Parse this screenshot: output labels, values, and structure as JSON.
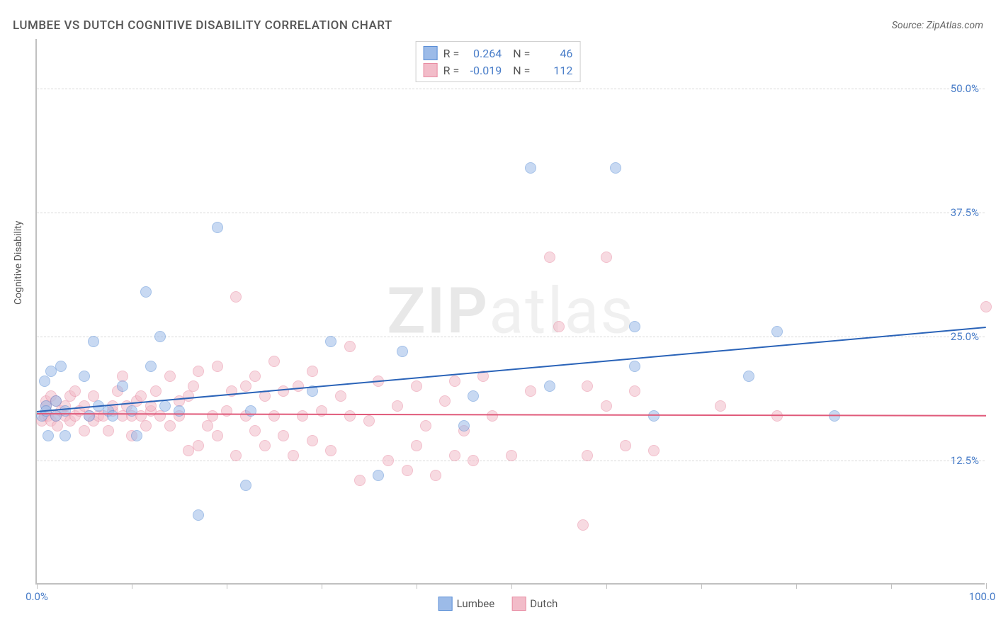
{
  "title": "LUMBEE VS DUTCH COGNITIVE DISABILITY CORRELATION CHART",
  "source_prefix": "Source: ",
  "source_name": "ZipAtlas.com",
  "watermark_bold": "ZIP",
  "watermark_light": "atlas",
  "ylabel": "Cognitive Disability",
  "chart": {
    "type": "scatter",
    "xlim": [
      0,
      100
    ],
    "ylim": [
      0,
      55
    ],
    "background_color": "#ffffff",
    "grid_color": "#d8d8d8",
    "axis_color": "#c0c0c0",
    "tick_label_color": "#4a7ec9",
    "y_gridlines": [
      12.5,
      25.0,
      37.5,
      50.0
    ],
    "y_tick_labels": [
      "12.5%",
      "25.0%",
      "37.5%",
      "50.0%"
    ],
    "x_ticks": [
      0,
      10,
      20,
      30,
      40,
      50,
      60,
      70,
      80,
      90,
      100
    ],
    "x_tick_labels": {
      "0": "0.0%",
      "100": "100.0%"
    },
    "marker_radius": 8,
    "marker_opacity": 0.55,
    "series": [
      {
        "name": "Lumbee",
        "fill_color": "#9cbbe8",
        "stroke_color": "#5b8fd6",
        "line_color": "#2a63b8",
        "R": "0.264",
        "N": "46",
        "trend": {
          "x1": 0,
          "y1": 17.5,
          "x2": 100,
          "y2": 26.0
        },
        "points": [
          [
            0.5,
            17
          ],
          [
            0.8,
            20.5
          ],
          [
            1,
            18
          ],
          [
            1,
            17.5
          ],
          [
            1.2,
            15
          ],
          [
            1.5,
            21.5
          ],
          [
            2,
            18.5
          ],
          [
            2,
            17
          ],
          [
            2.5,
            22
          ],
          [
            3,
            17.5
          ],
          [
            3,
            15
          ],
          [
            5,
            21
          ],
          [
            5.5,
            17
          ],
          [
            6,
            24.5
          ],
          [
            6.5,
            18
          ],
          [
            7.5,
            17.5
          ],
          [
            8,
            17
          ],
          [
            9,
            20
          ],
          [
            10,
            17.5
          ],
          [
            10.5,
            15
          ],
          [
            11.5,
            29.5
          ],
          [
            12,
            22
          ],
          [
            13,
            25
          ],
          [
            13.5,
            18
          ],
          [
            15,
            17.5
          ],
          [
            17,
            7
          ],
          [
            19,
            36
          ],
          [
            22,
            10
          ],
          [
            22.5,
            17.5
          ],
          [
            29,
            19.5
          ],
          [
            31,
            24.5
          ],
          [
            36,
            11
          ],
          [
            38.5,
            23.5
          ],
          [
            45,
            16
          ],
          [
            46,
            19
          ],
          [
            52,
            42
          ],
          [
            54,
            20
          ],
          [
            61,
            42
          ],
          [
            63,
            26
          ],
          [
            63,
            22
          ],
          [
            65,
            17
          ],
          [
            75,
            21
          ],
          [
            78,
            25.5
          ],
          [
            84,
            17
          ]
        ]
      },
      {
        "name": "Dutch",
        "fill_color": "#f2bcc9",
        "stroke_color": "#e88ca3",
        "line_color": "#e05a7a",
        "R": "-0.019",
        "N": "112",
        "trend": {
          "x1": 0,
          "y1": 17.3,
          "x2": 100,
          "y2": 17.1
        },
        "points": [
          [
            0.5,
            16.5
          ],
          [
            0.8,
            17
          ],
          [
            1,
            18
          ],
          [
            1,
            18.5
          ],
          [
            1.2,
            17
          ],
          [
            1.5,
            16.5
          ],
          [
            1.5,
            19
          ],
          [
            2,
            17
          ],
          [
            2,
            18.5
          ],
          [
            2.2,
            16
          ],
          [
            2.5,
            17.5
          ],
          [
            3,
            18
          ],
          [
            3,
            17
          ],
          [
            3.5,
            16.5
          ],
          [
            3.5,
            19
          ],
          [
            4,
            17
          ],
          [
            4,
            19.5
          ],
          [
            4.5,
            17.5
          ],
          [
            5,
            18
          ],
          [
            5,
            15.5
          ],
          [
            5.5,
            17
          ],
          [
            6,
            19
          ],
          [
            6,
            16.5
          ],
          [
            6.5,
            17
          ],
          [
            7,
            17
          ],
          [
            7.5,
            15.5
          ],
          [
            8,
            17.5
          ],
          [
            8,
            18
          ],
          [
            8.5,
            19.5
          ],
          [
            9,
            17
          ],
          [
            9,
            21
          ],
          [
            9.5,
            18
          ],
          [
            10,
            15
          ],
          [
            10,
            17
          ],
          [
            10.5,
            18.5
          ],
          [
            11,
            17
          ],
          [
            11,
            19
          ],
          [
            11.5,
            16
          ],
          [
            12,
            17.5
          ],
          [
            12,
            18
          ],
          [
            12.5,
            19.5
          ],
          [
            13,
            17
          ],
          [
            14,
            16
          ],
          [
            14,
            21
          ],
          [
            15,
            17
          ],
          [
            15,
            18.5
          ],
          [
            16,
            13.5
          ],
          [
            16,
            19
          ],
          [
            16.5,
            20
          ],
          [
            17,
            14
          ],
          [
            17,
            21.5
          ],
          [
            18,
            16
          ],
          [
            18.5,
            17
          ],
          [
            19,
            15
          ],
          [
            19,
            22
          ],
          [
            20,
            17.5
          ],
          [
            20.5,
            19.5
          ],
          [
            21,
            13
          ],
          [
            21,
            29
          ],
          [
            22,
            20
          ],
          [
            22,
            17
          ],
          [
            23,
            15.5
          ],
          [
            23,
            21
          ],
          [
            24,
            14
          ],
          [
            24,
            19
          ],
          [
            25,
            17
          ],
          [
            25,
            22.5
          ],
          [
            26,
            15
          ],
          [
            26,
            19.5
          ],
          [
            27,
            13
          ],
          [
            27.5,
            20
          ],
          [
            28,
            17
          ],
          [
            29,
            14.5
          ],
          [
            29,
            21.5
          ],
          [
            30,
            17.5
          ],
          [
            31,
            13.5
          ],
          [
            32,
            19
          ],
          [
            33,
            17
          ],
          [
            33,
            24
          ],
          [
            34,
            10.5
          ],
          [
            35,
            16.5
          ],
          [
            36,
            20.5
          ],
          [
            37,
            12.5
          ],
          [
            38,
            18
          ],
          [
            39,
            11.5
          ],
          [
            40,
            14
          ],
          [
            40,
            20
          ],
          [
            41,
            16
          ],
          [
            42,
            11
          ],
          [
            43,
            18.5
          ],
          [
            44,
            13
          ],
          [
            44,
            20.5
          ],
          [
            45,
            15.5
          ],
          [
            46,
            12.5
          ],
          [
            47,
            21
          ],
          [
            48,
            17
          ],
          [
            50,
            13
          ],
          [
            52,
            19.5
          ],
          [
            54,
            33
          ],
          [
            55,
            26
          ],
          [
            57.5,
            6
          ],
          [
            58,
            13
          ],
          [
            58,
            20
          ],
          [
            60,
            18
          ],
          [
            60,
            33
          ],
          [
            62,
            14
          ],
          [
            63,
            19.5
          ],
          [
            65,
            13.5
          ],
          [
            72,
            18
          ],
          [
            78,
            17
          ],
          [
            100,
            28
          ]
        ]
      }
    ]
  },
  "legend_top": {
    "r_label": "R =",
    "n_label": "N ="
  },
  "legend_bottom": [
    "Lumbee",
    "Dutch"
  ]
}
